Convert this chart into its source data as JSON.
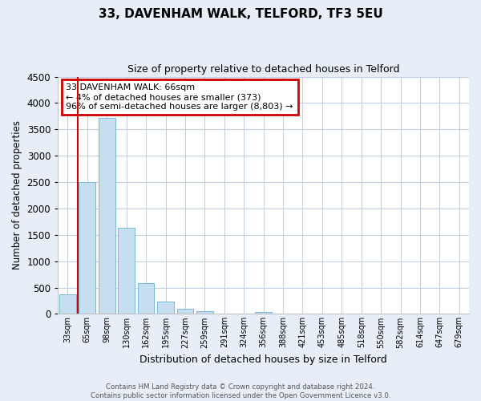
{
  "title": "33, DAVENHAM WALK, TELFORD, TF3 5EU",
  "subtitle": "Size of property relative to detached houses in Telford",
  "xlabel": "Distribution of detached houses by size in Telford",
  "ylabel": "Number of detached properties",
  "bar_labels": [
    "33sqm",
    "65sqm",
    "98sqm",
    "130sqm",
    "162sqm",
    "195sqm",
    "227sqm",
    "259sqm",
    "291sqm",
    "324sqm",
    "356sqm",
    "388sqm",
    "421sqm",
    "453sqm",
    "485sqm",
    "518sqm",
    "550sqm",
    "582sqm",
    "614sqm",
    "647sqm",
    "679sqm"
  ],
  "bar_values": [
    375,
    2500,
    3720,
    1640,
    590,
    240,
    95,
    50,
    0,
    0,
    40,
    0,
    0,
    0,
    0,
    0,
    0,
    0,
    0,
    0,
    0
  ],
  "bar_color": "#c5dff0",
  "bar_edge_color": "#7ab8d4",
  "vline_color": "#cc0000",
  "ylim": [
    0,
    4500
  ],
  "yticks": [
    0,
    500,
    1000,
    1500,
    2000,
    2500,
    3000,
    3500,
    4000,
    4500
  ],
  "annotation_box_text_line1": "33 DAVENHAM WALK: 66sqm",
  "annotation_box_text_line2": "← 4% of detached houses are smaller (373)",
  "annotation_box_text_line3": "96% of semi-detached houses are larger (8,803) →",
  "annotation_box_color": "#cc0000",
  "annotation_box_facecolor": "white",
  "footer_line1": "Contains HM Land Registry data © Crown copyright and database right 2024.",
  "footer_line2": "Contains public sector information licensed under the Open Government Licence v3.0.",
  "bg_color": "#e8eef8",
  "plot_bg_color": "#ffffff",
  "grid_color": "#c0cce0"
}
